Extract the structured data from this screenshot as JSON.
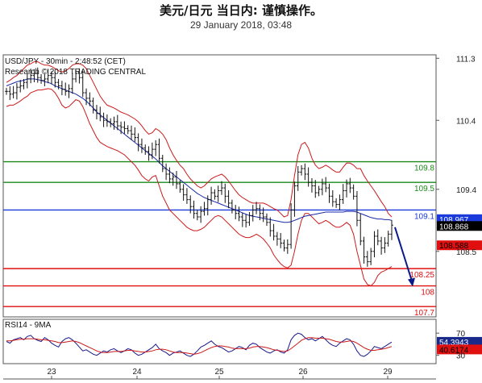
{
  "title": "美元/日元 当日内: 谨慎操作。",
  "subtitle": "29 January 2018, 03:48",
  "chart_data": {
    "type": "line",
    "symbol_label": "USD/JPY - 30min - 2:48:52 (CET)",
    "research_label": "Research © 2018 TRADING CENTRAL",
    "ylim": [
      107.55,
      111.35
    ],
    "y_ticks": [
      "111.3",
      "110.4",
      "109.4",
      "108.5"
    ],
    "x_ticks": [
      "23",
      "24",
      "25",
      "26",
      "29"
    ],
    "levels": [
      {
        "value": 109.8,
        "label": "109.8",
        "color": "#1a8a1a"
      },
      {
        "value": 109.5,
        "label": "109.5",
        "color": "#1a8a1a"
      },
      {
        "value": 109.1,
        "label": "109.1",
        "color": "#1a3adc"
      },
      {
        "value": 108.25,
        "label": "108.25",
        "color": "#e01010"
      },
      {
        "value": 108.0,
        "label": "108",
        "color": "#e01010"
      },
      {
        "value": 107.7,
        "label": "107.7",
        "color": "#e01010"
      }
    ],
    "tags": [
      {
        "value": 108.967,
        "label": "108.967",
        "bg": "#1a3adc",
        "fg": "#ffffff"
      },
      {
        "value": 108.868,
        "label": "108.868",
        "bg": "#000000",
        "fg": "#ffffff"
      },
      {
        "value": 108.588,
        "label": "108.588",
        "bg": "#e01010",
        "fg": "#000000"
      }
    ],
    "price_close": [
      110.82,
      110.78,
      110.8,
      110.88,
      110.9,
      110.95,
      111.0,
      111.05,
      111.08,
      111.02,
      110.98,
      111.0,
      111.05,
      111.02,
      110.95,
      110.9,
      110.85,
      110.82,
      110.86,
      111.0,
      111.08,
      111.02,
      110.8,
      110.72,
      110.68,
      110.55,
      110.5,
      110.45,
      110.4,
      110.38,
      110.35,
      110.38,
      110.32,
      110.3,
      110.28,
      110.25,
      110.2,
      110.15,
      110.05,
      110.0,
      109.95,
      109.9,
      109.98,
      110.05,
      109.85,
      109.7,
      109.62,
      109.55,
      109.58,
      109.48,
      109.4,
      109.32,
      109.25,
      109.15,
      109.05,
      109.0,
      109.08,
      109.12,
      109.25,
      109.35,
      109.3,
      109.38,
      109.42,
      109.3,
      109.2,
      109.1,
      109.05,
      109.0,
      108.95,
      108.92,
      109.02,
      109.1,
      109.12,
      109.05,
      109.0,
      108.92,
      108.8,
      108.72,
      108.68,
      108.62,
      108.55,
      108.6,
      109.1,
      109.45,
      109.65,
      109.7,
      109.62,
      109.5,
      109.45,
      109.35,
      109.4,
      109.48,
      109.42,
      109.3,
      109.22,
      109.18,
      109.25,
      109.38,
      109.48,
      109.42,
      109.3,
      108.95,
      108.65,
      108.42,
      108.35,
      108.5,
      108.72,
      108.65,
      108.55,
      108.62,
      108.75,
      108.88
    ],
    "bb_upper": [
      110.95,
      110.98,
      111.02,
      111.05,
      111.1,
      111.15,
      111.2,
      111.22,
      111.25,
      111.25,
      111.22,
      111.2,
      111.2,
      111.18,
      111.15,
      111.12,
      111.1,
      111.12,
      111.15,
      111.2,
      111.22,
      111.22,
      111.2,
      111.15,
      111.05,
      110.95,
      110.85,
      110.75,
      110.68,
      110.62,
      110.6,
      110.58,
      110.55,
      110.52,
      110.5,
      110.48,
      110.45,
      110.42,
      110.38,
      110.32,
      110.25,
      110.2,
      110.22,
      110.28,
      110.25,
      110.2,
      110.12,
      110.0,
      109.9,
      109.82,
      109.75,
      109.7,
      109.62,
      109.55,
      109.5,
      109.45,
      109.42,
      109.45,
      109.5,
      109.55,
      109.58,
      109.6,
      109.62,
      109.58,
      109.52,
      109.45,
      109.38,
      109.32,
      109.28,
      109.25,
      109.22,
      109.2,
      109.2,
      109.2,
      109.2,
      109.18,
      109.15,
      109.12,
      109.1,
      109.05,
      109.0,
      109.02,
      109.25,
      109.6,
      109.9,
      110.05,
      110.08,
      110.0,
      109.85,
      109.75,
      109.7,
      109.72,
      109.75,
      109.72,
      109.68,
      109.65,
      109.65,
      109.72,
      109.78,
      109.78,
      109.75,
      109.7,
      109.7,
      109.6,
      109.52,
      109.45,
      109.38,
      109.3,
      109.22,
      109.15,
      109.05,
      109.0
    ],
    "bb_lower": [
      110.6,
      110.62,
      110.62,
      110.65,
      110.68,
      110.72,
      110.75,
      110.8,
      110.82,
      110.84,
      110.84,
      110.85,
      110.86,
      110.85,
      110.8,
      110.72,
      110.62,
      110.58,
      110.6,
      110.65,
      110.7,
      110.68,
      110.6,
      110.48,
      110.35,
      110.25,
      110.15,
      110.08,
      110.05,
      110.02,
      110.0,
      109.98,
      109.96,
      109.93,
      109.9,
      109.85,
      109.8,
      109.75,
      109.68,
      109.6,
      109.55,
      109.52,
      109.58,
      109.6,
      109.45,
      109.3,
      109.2,
      109.1,
      109.05,
      109.0,
      108.95,
      108.9,
      108.85,
      108.82,
      108.8,
      108.8,
      108.82,
      108.85,
      108.9,
      108.95,
      109.0,
      109.02,
      109.0,
      108.95,
      108.9,
      108.85,
      108.8,
      108.75,
      108.72,
      108.7,
      108.7,
      108.72,
      108.75,
      108.72,
      108.68,
      108.62,
      108.55,
      108.45,
      108.38,
      108.32,
      108.28,
      108.26,
      108.3,
      108.5,
      108.75,
      108.95,
      109.05,
      109.05,
      109.0,
      108.95,
      108.9,
      108.92,
      108.95,
      108.92,
      108.88,
      108.85,
      108.85,
      108.88,
      108.92,
      108.88,
      108.75,
      108.5,
      108.3,
      108.1,
      108.02,
      108.0,
      108.05,
      108.15,
      108.2,
      108.22,
      108.25,
      108.28
    ],
    "ma_blue": [
      110.9,
      110.92,
      110.94,
      110.96,
      110.97,
      110.98,
      111.0,
      111.0,
      111.0,
      110.99,
      110.98,
      110.96,
      110.95,
      110.93,
      110.9,
      110.88,
      110.86,
      110.84,
      110.82,
      110.8,
      110.78,
      110.75,
      110.72,
      110.68,
      110.63,
      110.58,
      110.52,
      110.48,
      110.44,
      110.4,
      110.36,
      110.32,
      110.28,
      110.24,
      110.2,
      110.16,
      110.12,
      110.08,
      110.04,
      110.0,
      109.96,
      109.92,
      109.88,
      109.84,
      109.79,
      109.74,
      109.7,
      109.66,
      109.62,
      109.58,
      109.54,
      109.5,
      109.46,
      109.42,
      109.38,
      109.34,
      109.31,
      109.28,
      109.26,
      109.24,
      109.22,
      109.2,
      109.18,
      109.16,
      109.14,
      109.12,
      109.1,
      109.08,
      109.06,
      109.04,
      109.02,
      109.01,
      109.0,
      108.99,
      108.98,
      108.97,
      108.96,
      108.95,
      108.94,
      108.93,
      108.92,
      108.92,
      108.93,
      108.95,
      108.97,
      108.99,
      109.01,
      109.02,
      109.03,
      109.04,
      109.05,
      109.06,
      109.07,
      109.07,
      109.07,
      109.07,
      109.07,
      109.07,
      109.08,
      109.08,
      109.08,
      109.07,
      109.05,
      109.03,
      109.01,
      108.99,
      108.98,
      108.97,
      108.97,
      108.96,
      108.96,
      108.95
    ],
    "forecast": [
      [
        108.85,
        108.0
      ]
    ],
    "rsi": {
      "label": "RSI14 - 9MA",
      "ticks": [
        "70",
        "30"
      ],
      "tags": [
        {
          "value": 54.3943,
          "label": "54.3943",
          "bg": "#1a2a8a",
          "fg": "#ffffff"
        },
        {
          "value": 40.6174,
          "label": "40.6174",
          "bg": "#e01010",
          "fg": "#000000"
        }
      ],
      "ylim": [
        15,
        95
      ],
      "rsi_values": [
        55,
        52,
        58,
        60,
        62,
        58,
        64,
        66,
        60,
        57,
        55,
        62,
        58,
        52,
        48,
        45,
        55,
        60,
        62,
        58,
        52,
        45,
        38,
        40,
        36,
        32,
        30,
        34,
        38,
        36,
        40,
        42,
        38,
        35,
        38,
        42,
        40,
        34,
        30,
        32,
        36,
        40,
        44,
        50,
        42,
        38,
        35,
        30,
        34,
        36,
        38,
        34,
        30,
        28,
        32,
        38,
        45,
        48,
        52,
        56,
        50,
        46,
        44,
        40,
        36,
        38,
        42,
        46,
        44,
        40,
        48,
        52,
        50,
        44,
        40,
        36,
        34,
        38,
        40,
        36,
        34,
        40,
        58,
        66,
        70,
        68,
        62,
        58,
        60,
        56,
        60,
        64,
        58,
        52,
        48,
        46,
        52,
        56,
        60,
        58,
        50,
        38,
        30,
        28,
        32,
        38,
        46,
        44,
        42,
        46,
        50,
        54
      ],
      "ma_values": [
        56,
        56,
        57,
        58,
        59,
        59,
        60,
        60,
        60,
        59,
        58,
        58,
        57,
        56,
        55,
        53,
        53,
        54,
        55,
        56,
        55,
        53,
        50,
        47,
        44,
        41,
        38,
        36,
        35,
        35,
        36,
        37,
        37,
        37,
        38,
        39,
        39,
        38,
        37,
        36,
        36,
        37,
        38,
        40,
        41,
        41,
        40,
        38,
        36,
        35,
        35,
        35,
        34,
        33,
        32,
        33,
        35,
        38,
        41,
        44,
        46,
        47,
        47,
        46,
        45,
        43,
        42,
        42,
        42,
        42,
        43,
        45,
        46,
        46,
        45,
        44,
        42,
        40,
        39,
        38,
        37,
        38,
        42,
        47,
        52,
        57,
        60,
        62,
        62,
        61,
        61,
        61,
        60,
        59,
        57,
        55,
        54,
        54,
        55,
        56,
        55,
        52,
        48,
        44,
        41,
        39,
        39,
        40,
        41,
        42,
        44,
        46
      ]
    }
  }
}
